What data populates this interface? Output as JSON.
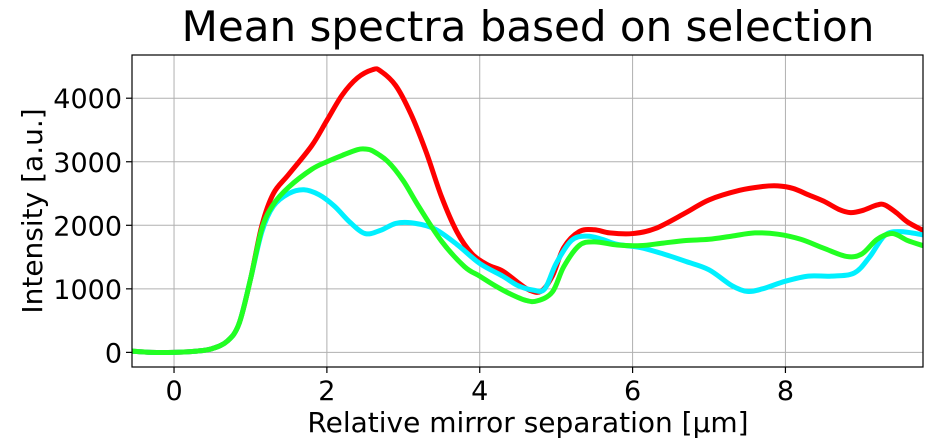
{
  "chart_data": {
    "type": "line",
    "title": "Mean spectra based on selection",
    "xlabel": "Relative mirror separation [μm]",
    "ylabel": "Intensity [a.u.]",
    "xlim": [
      -0.55,
      9.8
    ],
    "ylim": [
      -230,
      4680
    ],
    "xticks": [
      0,
      2,
      4,
      6,
      8
    ],
    "yticks": [
      0,
      1000,
      2000,
      3000,
      4000
    ],
    "grid": true,
    "series": [
      {
        "name": "red",
        "color": "#ff0000",
        "x": [
          -0.55,
          -0.3,
          0,
          0.3,
          0.5,
          0.7,
          0.85,
          1.0,
          1.15,
          1.3,
          1.5,
          1.8,
          2.0,
          2.2,
          2.4,
          2.6,
          2.7,
          2.9,
          3.1,
          3.3,
          3.5,
          3.7,
          3.9,
          4.1,
          4.3,
          4.5,
          4.65,
          4.8,
          4.95,
          5.1,
          5.3,
          5.5,
          5.7,
          6.0,
          6.3,
          6.7,
          7.0,
          7.4,
          7.7,
          7.9,
          8.1,
          8.3,
          8.5,
          8.7,
          8.85,
          9.0,
          9.2,
          9.3,
          9.45,
          9.6,
          9.8
        ],
        "y": [
          20,
          0,
          0,
          20,
          60,
          180,
          450,
          1150,
          2000,
          2500,
          2800,
          3250,
          3650,
          4050,
          4320,
          4450,
          4430,
          4200,
          3750,
          3150,
          2450,
          1900,
          1550,
          1380,
          1280,
          1100,
          980,
          960,
          1200,
          1650,
          1900,
          1930,
          1880,
          1870,
          1950,
          2200,
          2400,
          2550,
          2610,
          2620,
          2580,
          2480,
          2380,
          2250,
          2200,
          2230,
          2320,
          2320,
          2200,
          2050,
          1920
        ]
      },
      {
        "name": "cyan",
        "color": "#00f0ff",
        "x": [
          -0.55,
          -0.3,
          0,
          0.3,
          0.5,
          0.7,
          0.85,
          1.0,
          1.15,
          1.3,
          1.5,
          1.7,
          1.9,
          2.1,
          2.3,
          2.5,
          2.7,
          2.9,
          3.1,
          3.4,
          3.7,
          4.0,
          4.3,
          4.5,
          4.7,
          4.85,
          5.0,
          5.2,
          5.4,
          5.6,
          5.8,
          6.1,
          6.4,
          6.7,
          7.0,
          7.3,
          7.5,
          7.7,
          8.0,
          8.3,
          8.6,
          8.9,
          9.1,
          9.3,
          9.5,
          9.8
        ],
        "y": [
          20,
          0,
          0,
          20,
          60,
          180,
          450,
          1150,
          1900,
          2300,
          2500,
          2560,
          2480,
          2300,
          2050,
          1870,
          1920,
          2030,
          2040,
          1950,
          1700,
          1400,
          1200,
          1050,
          980,
          1000,
          1400,
          1760,
          1830,
          1780,
          1700,
          1650,
          1550,
          1430,
          1300,
          1050,
          960,
          1000,
          1120,
          1200,
          1200,
          1250,
          1500,
          1840,
          1900,
          1850
        ]
      },
      {
        "name": "green",
        "color": "#22ff22",
        "x": [
          -0.55,
          -0.3,
          0,
          0.3,
          0.5,
          0.7,
          0.85,
          1.0,
          1.15,
          1.3,
          1.5,
          1.8,
          2.0,
          2.2,
          2.4,
          2.5,
          2.6,
          2.8,
          3.0,
          3.2,
          3.5,
          3.8,
          4.0,
          4.2,
          4.4,
          4.6,
          4.75,
          4.95,
          5.1,
          5.3,
          5.5,
          5.8,
          6.1,
          6.4,
          6.7,
          7.0,
          7.3,
          7.6,
          7.9,
          8.2,
          8.5,
          8.8,
          9.0,
          9.2,
          9.4,
          9.6,
          9.8
        ],
        "y": [
          20,
          0,
          0,
          20,
          60,
          180,
          450,
          1150,
          1950,
          2330,
          2600,
          2880,
          3000,
          3100,
          3190,
          3200,
          3170,
          3000,
          2700,
          2300,
          1750,
          1350,
          1200,
          1050,
          920,
          820,
          810,
          950,
          1350,
          1680,
          1740,
          1690,
          1680,
          1720,
          1760,
          1780,
          1830,
          1880,
          1860,
          1780,
          1640,
          1510,
          1550,
          1780,
          1870,
          1760,
          1680
        ]
      }
    ]
  }
}
